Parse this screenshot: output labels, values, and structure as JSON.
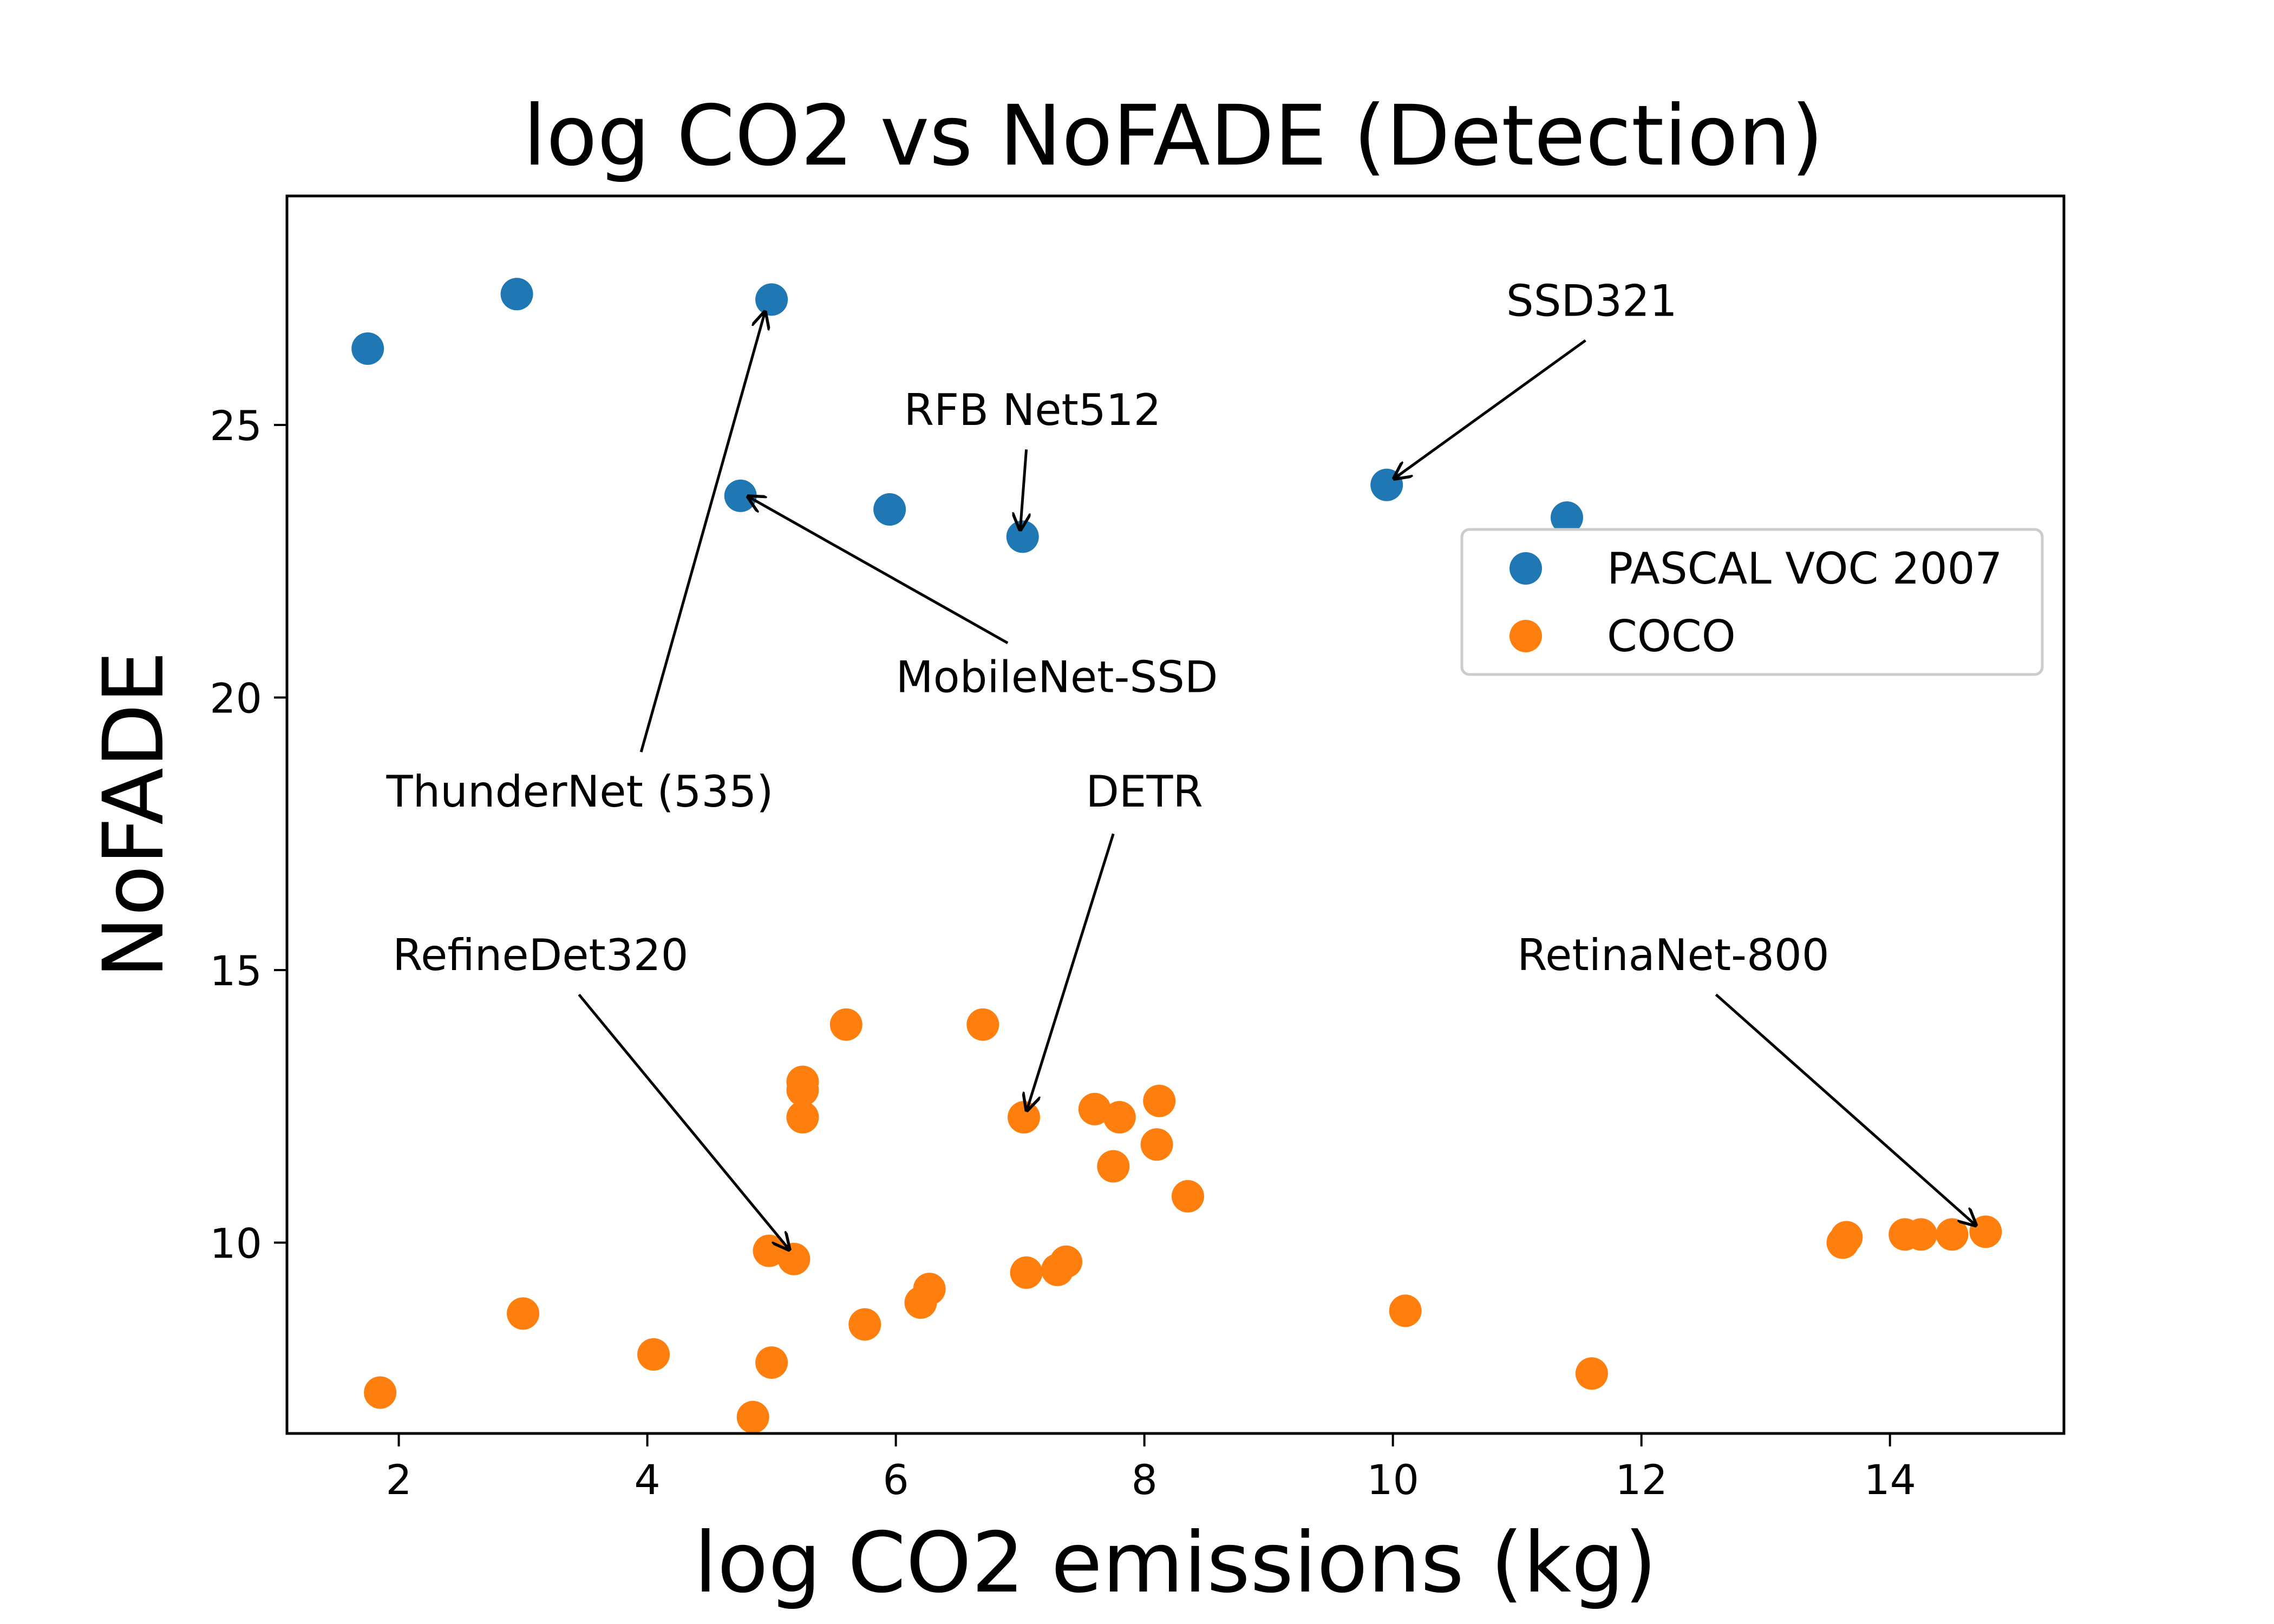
{
  "chart_data": {
    "type": "scatter",
    "title": "log CO2 vs NoFADE (Detection)",
    "xlabel": "log CO2 emissions (kg)",
    "ylabel": "NoFADE",
    "xlim": [
      1.1,
      15.4
    ],
    "ylim": [
      6.5,
      29.2
    ],
    "xticks": [
      2,
      4,
      6,
      8,
      10,
      12,
      14
    ],
    "yticks": [
      10,
      15,
      20,
      25
    ],
    "legend_position": "center-right",
    "series": [
      {
        "name": "PASCAL VOC 2007",
        "color": "#1f77b4",
        "points": [
          [
            1.75,
            26.4
          ],
          [
            2.95,
            27.4
          ],
          [
            5.0,
            27.3
          ],
          [
            4.75,
            23.7
          ],
          [
            5.95,
            23.45
          ],
          [
            7.02,
            22.95
          ],
          [
            9.95,
            23.9
          ],
          [
            11.4,
            23.3
          ]
        ]
      },
      {
        "name": "COCO",
        "color": "#ff7f0e",
        "points": [
          [
            1.85,
            7.25
          ],
          [
            3.0,
            8.7
          ],
          [
            4.05,
            7.95
          ],
          [
            4.85,
            6.8
          ],
          [
            5.0,
            7.8
          ],
          [
            4.98,
            9.85
          ],
          [
            5.18,
            9.7
          ],
          [
            5.25,
            12.95
          ],
          [
            5.25,
            12.8
          ],
          [
            5.25,
            12.3
          ],
          [
            5.6,
            14.0
          ],
          [
            5.75,
            8.5
          ],
          [
            6.2,
            8.9
          ],
          [
            6.27,
            9.15
          ],
          [
            6.7,
            14.0
          ],
          [
            7.03,
            12.3
          ],
          [
            7.05,
            9.45
          ],
          [
            7.3,
            9.5
          ],
          [
            7.37,
            9.65
          ],
          [
            7.6,
            12.45
          ],
          [
            7.75,
            11.4
          ],
          [
            7.8,
            12.3
          ],
          [
            8.1,
            11.8
          ],
          [
            8.12,
            12.6
          ],
          [
            8.35,
            10.85
          ],
          [
            10.1,
            8.75
          ],
          [
            11.6,
            7.6
          ],
          [
            13.62,
            10.0
          ],
          [
            13.65,
            10.1
          ],
          [
            14.12,
            10.15
          ],
          [
            14.25,
            10.15
          ],
          [
            14.5,
            10.15
          ],
          [
            14.77,
            10.2
          ]
        ]
      }
    ],
    "annotations": [
      {
        "text": "ThunderNet (535)",
        "point": [
          4.95,
          27.1
        ],
        "text_pos": [
          1.9,
          18.0
        ],
        "tail": [
          3.95,
          19.0
        ],
        "anchor": "start"
      },
      {
        "text": "MobileNet-SSD",
        "point": [
          4.8,
          23.7
        ],
        "text_pos": [
          6.0,
          20.1
        ],
        "tail": [
          6.9,
          21.0
        ],
        "anchor": "start"
      },
      {
        "text": "RFB Net512",
        "point": [
          7.0,
          23.05
        ],
        "text_pos": [
          7.1,
          25.0
        ],
        "tail": [
          7.05,
          24.55
        ],
        "anchor": "middle"
      },
      {
        "text": "SSD321",
        "point": [
          10.0,
          24.0
        ],
        "text_pos": [
          11.6,
          27.0
        ],
        "tail": [
          11.55,
          26.55
        ],
        "anchor": "middle"
      },
      {
        "text": "DETR",
        "point": [
          7.05,
          12.4
        ],
        "text_pos": [
          8.0,
          18.0
        ],
        "tail": [
          7.75,
          17.5
        ],
        "anchor": "middle"
      },
      {
        "text": "RefineDet320",
        "point": [
          5.15,
          9.85
        ],
        "text_pos": [
          1.95,
          15.0
        ],
        "tail": [
          3.45,
          14.55
        ],
        "anchor": "start"
      },
      {
        "text": "RetinaNet-800",
        "point": [
          14.7,
          10.3
        ],
        "text_pos": [
          11.0,
          15.0
        ],
        "tail": [
          12.6,
          14.55
        ],
        "anchor": "start"
      }
    ]
  }
}
